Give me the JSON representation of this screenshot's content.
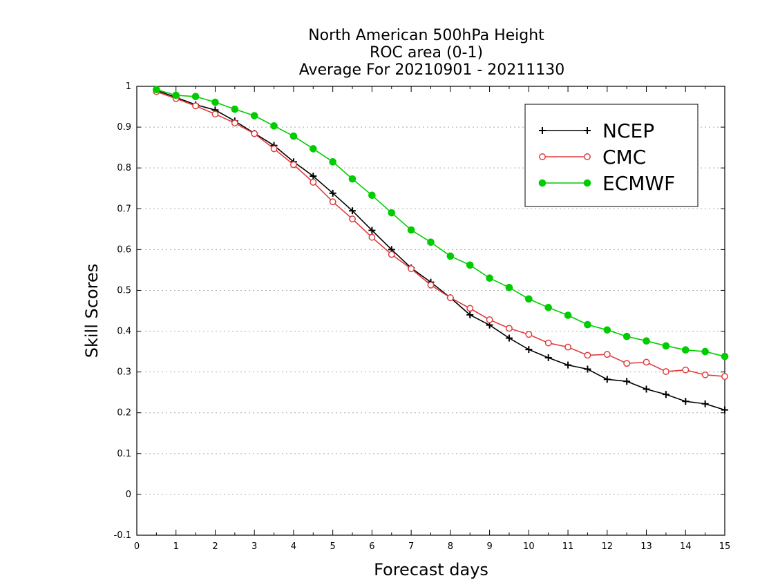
{
  "chart_data": {
    "type": "line",
    "title": [
      "North American 500hPa Height",
      "ROC area (0-1)",
      "Average For 20210901 - 20211130"
    ],
    "xlabel": "Forecast days",
    "ylabel": "Skill Scores",
    "xlim": [
      0,
      15
    ],
    "ylim": [
      -0.1,
      1
    ],
    "x_ticks": [
      "0",
      "1",
      "2",
      "3",
      "4",
      "5",
      "6",
      "7",
      "8",
      "9",
      "10",
      "11",
      "12",
      "13",
      "14",
      "15"
    ],
    "y_ticks": [
      "-0.1",
      "0",
      "0.1",
      "0.2",
      "0.3",
      "0.4",
      "0.5",
      "0.6",
      "0.7",
      "0.8",
      "0.9",
      "1"
    ],
    "grid": "horizontal dotted",
    "legend_position": "top-right",
    "x": [
      0.5,
      1,
      1.5,
      2,
      2.5,
      3,
      3.5,
      4,
      4.5,
      5,
      5.5,
      6,
      6.5,
      7,
      7.5,
      8,
      8.5,
      9,
      9.5,
      10,
      10.5,
      11,
      11.5,
      12,
      12.5,
      13,
      13.5,
      14,
      14.5,
      15
    ],
    "series": [
      {
        "name": "NCEP",
        "color": "#000000",
        "marker": "plus",
        "values": [
          0.99,
          0.973,
          0.955,
          0.942,
          0.915,
          0.885,
          0.855,
          0.815,
          0.78,
          0.738,
          0.695,
          0.647,
          0.6,
          0.555,
          0.52,
          0.482,
          0.44,
          0.415,
          0.383,
          0.355,
          0.335,
          0.317,
          0.307,
          0.282,
          0.277,
          0.258,
          0.245,
          0.228,
          0.222,
          0.207
        ]
      },
      {
        "name": "CMC",
        "color": "#e03c3c",
        "marker": "open-circle",
        "values": [
          0.987,
          0.97,
          0.952,
          0.932,
          0.91,
          0.884,
          0.847,
          0.808,
          0.765,
          0.717,
          0.675,
          0.63,
          0.588,
          0.553,
          0.513,
          0.482,
          0.456,
          0.428,
          0.407,
          0.392,
          0.371,
          0.361,
          0.341,
          0.343,
          0.321,
          0.324,
          0.301,
          0.305,
          0.293,
          0.289
        ]
      },
      {
        "name": "ECMWF",
        "color": "#00cc00",
        "marker": "filled-circle",
        "values": [
          0.992,
          0.978,
          0.975,
          0.961,
          0.944,
          0.928,
          0.903,
          0.878,
          0.847,
          0.815,
          0.773,
          0.733,
          0.69,
          0.648,
          0.618,
          0.584,
          0.562,
          0.53,
          0.507,
          0.479,
          0.458,
          0.439,
          0.416,
          0.403,
          0.387,
          0.376,
          0.364,
          0.354,
          0.35,
          0.338
        ]
      }
    ]
  }
}
